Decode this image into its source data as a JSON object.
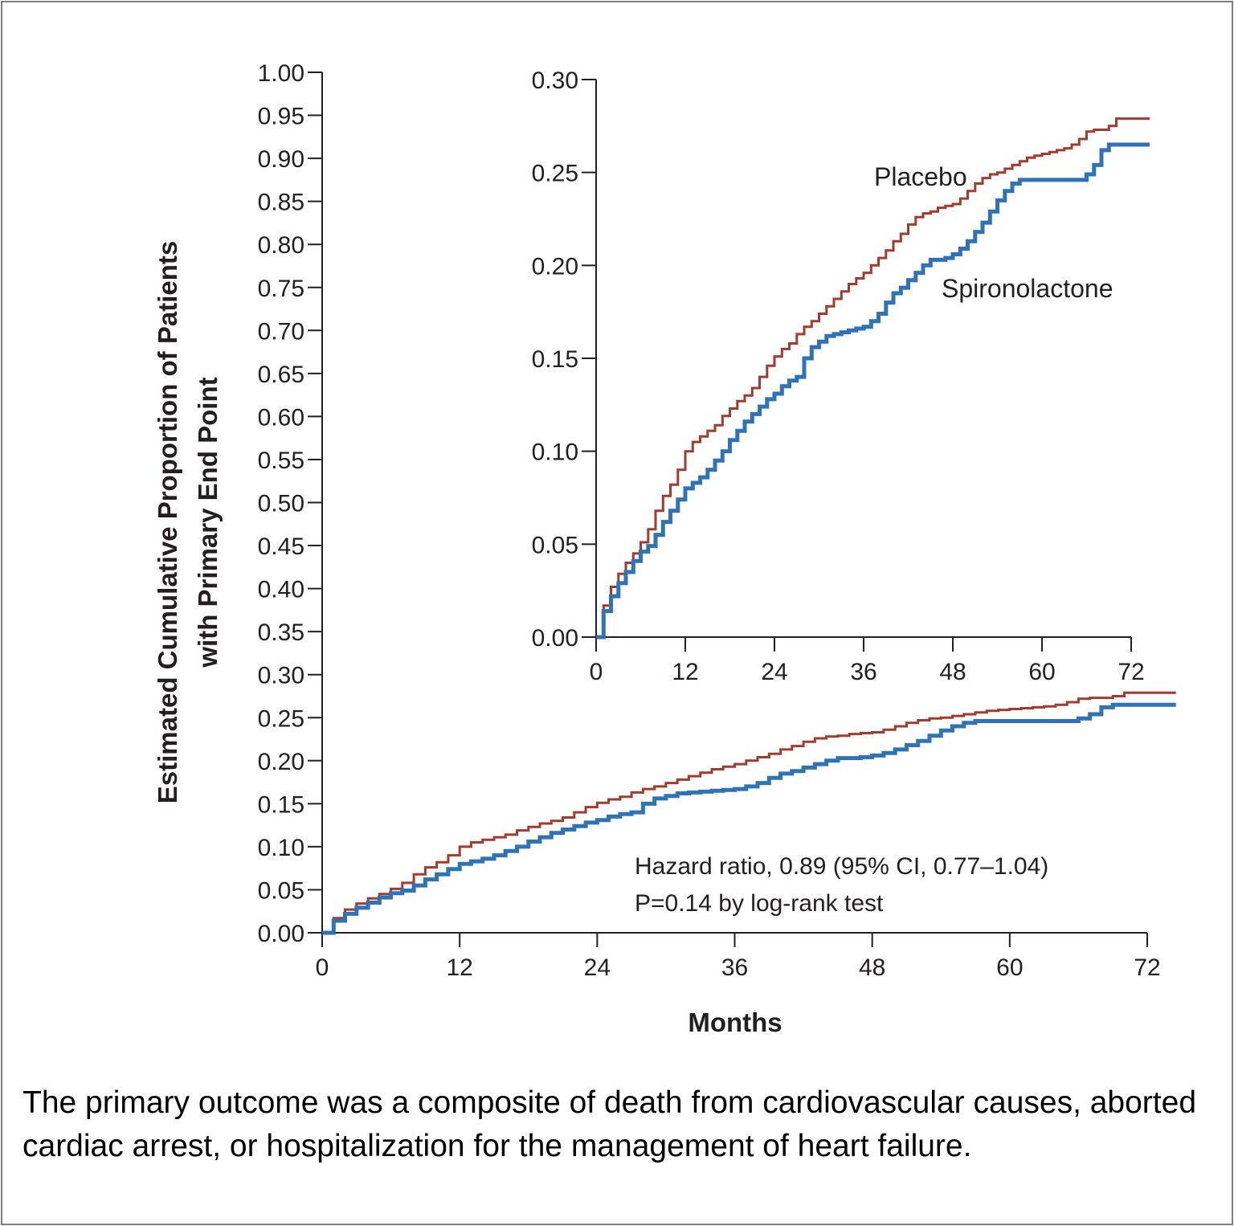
{
  "chart_data": {
    "type": "line",
    "main_plot": {
      "ylabel_line1": "Estimated Cumulative Proportion of Patients",
      "ylabel_line2": "with Primary End Point",
      "xlabel": "Months",
      "xlim": [
        0,
        72
      ],
      "ylim": [
        0,
        1.0
      ],
      "xticks": [
        "0",
        "12",
        "24",
        "36",
        "48",
        "60",
        "72"
      ],
      "yticks": [
        "0.00",
        "0.05",
        "0.10",
        "0.15",
        "0.20",
        "0.25",
        "0.30",
        "0.35",
        "0.40",
        "0.45",
        "0.50",
        "0.55",
        "0.60",
        "0.65",
        "0.70",
        "0.75",
        "0.80",
        "0.85",
        "0.90",
        "0.95",
        "1.00"
      ],
      "annotation_line1": "Hazard ratio, 0.89 (95% CI, 0.77–1.04)",
      "annotation_line2": "P=0.14 by log-rank test"
    },
    "inset_plot": {
      "xlim": [
        0,
        72
      ],
      "ylim": [
        0,
        0.3
      ],
      "xticks": [
        "0",
        "12",
        "24",
        "36",
        "48",
        "60",
        "72"
      ],
      "yticks": [
        "0.00",
        "0.05",
        "0.10",
        "0.15",
        "0.20",
        "0.25",
        "0.30"
      ]
    },
    "series": [
      {
        "name": "Placebo",
        "color": "#a23a2e",
        "x": [
          0,
          1,
          2,
          3,
          4,
          5,
          6,
          7,
          8,
          9,
          10,
          11,
          12,
          13,
          14,
          15,
          16,
          17,
          18,
          19,
          20,
          21,
          22,
          23,
          24,
          25,
          26,
          27,
          28,
          29,
          30,
          31,
          32,
          33,
          34,
          35,
          36,
          37,
          38,
          39,
          40,
          41,
          42,
          43,
          44,
          45,
          46,
          47,
          48,
          49,
          50,
          51,
          52,
          53,
          54,
          55,
          56,
          57,
          58,
          59,
          60,
          61,
          62,
          63,
          64,
          65,
          66,
          67,
          68,
          69,
          70,
          71,
          72,
          74.5
        ],
        "values": [
          0.0,
          0.017,
          0.027,
          0.034,
          0.04,
          0.045,
          0.051,
          0.058,
          0.068,
          0.076,
          0.082,
          0.09,
          0.1,
          0.105,
          0.108,
          0.111,
          0.114,
          0.119,
          0.123,
          0.127,
          0.13,
          0.134,
          0.14,
          0.146,
          0.151,
          0.155,
          0.158,
          0.163,
          0.167,
          0.17,
          0.174,
          0.178,
          0.182,
          0.186,
          0.19,
          0.193,
          0.196,
          0.2,
          0.204,
          0.208,
          0.213,
          0.217,
          0.222,
          0.226,
          0.228,
          0.229,
          0.231,
          0.232,
          0.233,
          0.236,
          0.24,
          0.244,
          0.247,
          0.249,
          0.25,
          0.252,
          0.254,
          0.256,
          0.258,
          0.259,
          0.26,
          0.261,
          0.262,
          0.263,
          0.265,
          0.268,
          0.272,
          0.273,
          0.273,
          0.275,
          0.279,
          0.279,
          0.279,
          0.279
        ]
      },
      {
        "name": "Spironolactone",
        "color": "#2e72b8",
        "x": [
          0,
          1,
          2,
          3,
          4,
          5,
          6,
          7,
          8,
          9,
          10,
          11,
          12,
          13,
          14,
          15,
          16,
          17,
          18,
          19,
          20,
          21,
          22,
          23,
          24,
          25,
          26,
          27,
          28,
          29,
          30,
          31,
          32,
          33,
          34,
          35,
          36,
          37,
          38,
          39,
          40,
          41,
          42,
          43,
          44,
          45,
          46,
          47,
          48,
          49,
          50,
          51,
          52,
          53,
          54,
          55,
          56,
          57,
          58,
          59,
          60,
          61,
          62,
          63,
          64,
          65,
          66,
          67,
          68,
          69,
          70,
          71,
          72,
          74.5
        ],
        "values": [
          0.0,
          0.014,
          0.022,
          0.029,
          0.035,
          0.041,
          0.046,
          0.049,
          0.055,
          0.062,
          0.068,
          0.074,
          0.08,
          0.083,
          0.086,
          0.09,
          0.095,
          0.1,
          0.106,
          0.111,
          0.116,
          0.12,
          0.124,
          0.128,
          0.131,
          0.135,
          0.138,
          0.14,
          0.15,
          0.156,
          0.159,
          0.162,
          0.163,
          0.164,
          0.165,
          0.166,
          0.167,
          0.17,
          0.174,
          0.18,
          0.185,
          0.188,
          0.192,
          0.196,
          0.2,
          0.203,
          0.203,
          0.204,
          0.206,
          0.209,
          0.213,
          0.218,
          0.223,
          0.229,
          0.235,
          0.24,
          0.244,
          0.246,
          0.246,
          0.246,
          0.246,
          0.246,
          0.246,
          0.246,
          0.246,
          0.246,
          0.249,
          0.254,
          0.262,
          0.265,
          0.265,
          0.265,
          0.265,
          0.265
        ]
      }
    ]
  },
  "caption": "The primary outcome was a composite of death from cardiovascular causes, aborted cardiac arrest, or hospitalization for the management of heart failure."
}
